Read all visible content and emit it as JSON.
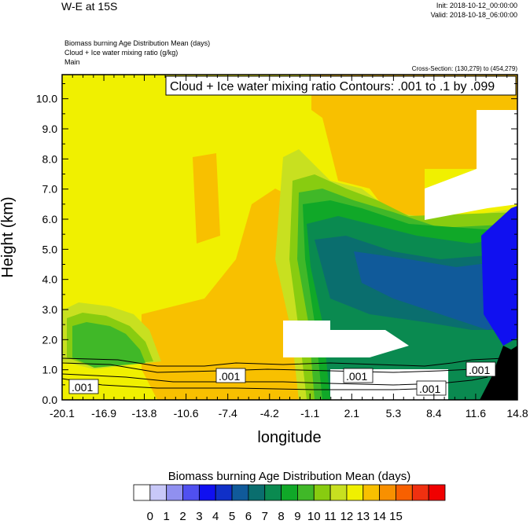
{
  "header": {
    "title": "W-E at 15S",
    "init": "Init: 2018-10-12_00:00:00",
    "valid": "Valid: 2018-10-18_06:00:00",
    "field1": "Biomass burning Age Distribution Mean   (days)",
    "field2": "Cloud + Ice water mixing ratio   (g/kg)",
    "field3": "Main",
    "cross_section": "Cross-Section: (130,279) to (454,279)"
  },
  "chart_data": {
    "type": "heatmap",
    "title": "Cloud + Ice water mixing ratio Contours: .001 to .1 by .099",
    "xlabel": "longitude",
    "ylabel": "Height (km)",
    "xlim": [
      -20.1,
      14.8
    ],
    "ylim": [
      0.0,
      10.8
    ],
    "x_ticks": [
      -20.1,
      -16.9,
      -13.8,
      -10.6,
      -7.4,
      -4.2,
      -1.1,
      2.1,
      5.3,
      8.4,
      11.6,
      14.8
    ],
    "x_tick_labels": [
      "-20.1",
      "-16.9",
      "-13.8",
      "-10.6",
      "-7.4",
      "-4.2",
      "-1.1",
      "2.1",
      "5.3",
      "8.4",
      "11.6",
      "14.8"
    ],
    "y_ticks": [
      0,
      1,
      2,
      3,
      4,
      5,
      6,
      7,
      8,
      9,
      10
    ],
    "y_tick_labels": [
      "0.0",
      "1.0",
      "2.0",
      "3.0",
      "4.0",
      "5.0",
      "6.0",
      "7.0",
      "8.0",
      "9.0",
      "10.0"
    ],
    "colorbar": {
      "title": "Biomass burning Age Distribution Mean  (days)",
      "labels": [
        "0",
        "1",
        "2",
        "3",
        "4",
        "5",
        "6",
        "7",
        "8",
        "9",
        "10",
        "11",
        "12",
        "13",
        "14",
        "15"
      ],
      "colors": [
        "#ffffff",
        "#c8c8f8",
        "#9090f0",
        "#5050f0",
        "#1010f0",
        "#1030c8",
        "#105a9a",
        "#0a6e6e",
        "#0a8a50",
        "#10a828",
        "#40b828",
        "#88cc10",
        "#c8e020",
        "#f0f000",
        "#f8c000",
        "#f89000",
        "#f86000",
        "#f03010",
        "#f00000"
      ]
    },
    "contour_labels": [
      ".001",
      ".001",
      ".001",
      ".001",
      ".001"
    ],
    "terrain_color": "#000000"
  }
}
